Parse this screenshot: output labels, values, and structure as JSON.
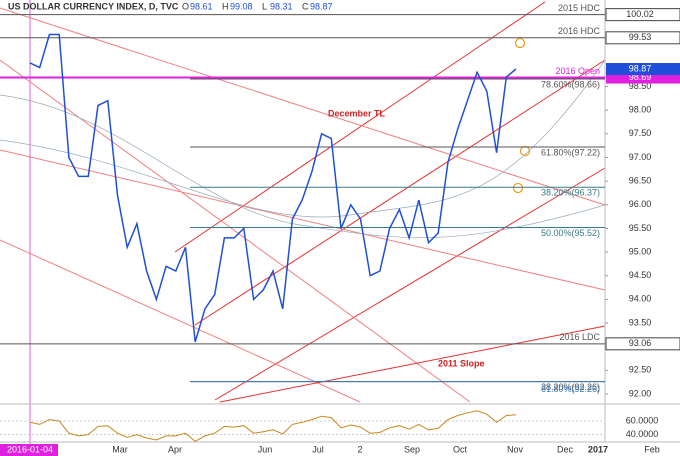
{
  "chart_data": {
    "type": "line",
    "title": "US DOLLAR CURRENCY INDEX, D, TVC",
    "ohlc": [
      {
        "label": "O",
        "value": 98.61
      },
      {
        "label": "H",
        "value": 99.08
      },
      {
        "label": "L",
        "value": 98.31
      },
      {
        "label": "C",
        "value": 98.87
      }
    ],
    "series": [
      {
        "name": "DXY",
        "color": "#1f4fd8",
        "values": [
          99.0,
          98.9,
          99.6,
          99.6,
          97.0,
          96.6,
          96.6,
          98.1,
          98.2,
          96.2,
          95.1,
          95.6,
          94.6,
          94.0,
          94.7,
          94.6,
          95.1,
          93.1,
          93.8,
          94.1,
          95.3,
          95.3,
          95.5,
          94.0,
          94.2,
          94.6,
          93.8,
          95.7,
          96.1,
          96.7,
          97.5,
          97.4,
          95.5,
          96.0,
          95.7,
          94.5,
          94.6,
          95.5,
          95.9,
          95.3,
          96.1,
          95.2,
          95.4,
          96.9,
          97.6,
          98.2,
          98.8,
          98.4,
          97.1,
          98.7,
          98.87
        ]
      },
      {
        "name": "RSI",
        "color": "#c8881e",
        "axis": "y2",
        "values": [
          58,
          55,
          62,
          60,
          42,
          38,
          40,
          52,
          53,
          42,
          36,
          40,
          35,
          32,
          38,
          38,
          42,
          30,
          38,
          42,
          52,
          51,
          53,
          42,
          44,
          47,
          41,
          55,
          58,
          62,
          67,
          65,
          50,
          54,
          51,
          42,
          43,
          50,
          53,
          48,
          55,
          47,
          49,
          62,
          68,
          72,
          75,
          70,
          58,
          68,
          69
        ]
      }
    ],
    "current_price": 98.87,
    "levels": [
      {
        "name": "2015 HDC",
        "value": 100.02,
        "color": "#555555",
        "tag": true
      },
      {
        "name": "2016 HDC",
        "value": 99.53,
        "color": "#555555",
        "tag": true
      },
      {
        "name": "2016 Open",
        "value": 98.69,
        "color": "#e020e0",
        "tag": true
      },
      {
        "name": "78.60%(98.66)",
        "value": 98.66,
        "color": "#555555",
        "tag": false
      },
      {
        "name": "61.80%(97.22)",
        "value": 97.22,
        "color": "#555555",
        "tag": false
      },
      {
        "name": "38.20%(96.37)",
        "value": 96.37,
        "color": "#3a7a8a",
        "tag": false
      },
      {
        "name": "50.00%(95.52)",
        "value": 95.52,
        "color": "#3a7a8a",
        "tag": false
      },
      {
        "name": "2016 LDC",
        "value": 93.06,
        "color": "#555555",
        "tag": true
      },
      {
        "name": "38.20%(92.26)",
        "value": 92.26,
        "color": "#555555",
        "tag": false
      },
      {
        "name": "61.80%(92.26)",
        "value": 92.26,
        "color": "#3a7ab8",
        "tag": false
      }
    ],
    "annotations": [
      "December TL",
      "2011 Slope"
    ],
    "ylim": [
      91.83,
      100.16
    ],
    "yticks": [
      {
        "value": 98.5,
        "label": "98.50"
      },
      {
        "value": 98.0,
        "label": "98.00"
      },
      {
        "value": 97.5,
        "label": "97.50"
      },
      {
        "value": 97.0,
        "label": "97.00"
      },
      {
        "value": 96.5,
        "label": "96.50"
      },
      {
        "value": 96.0,
        "label": "96.00"
      },
      {
        "value": 95.5,
        "label": "95.50"
      },
      {
        "value": 95.0,
        "label": "95.00"
      },
      {
        "value": 94.5,
        "label": "94.50"
      },
      {
        "value": 94.0,
        "label": "94.00"
      },
      {
        "value": 93.5,
        "label": "93.50"
      },
      {
        "value": 92.5,
        "label": "92.50"
      },
      {
        "value": 92.0,
        "label": "92.00"
      }
    ],
    "y2lim": [
      32,
      82
    ],
    "y2ticks": [
      {
        "value": 60,
        "label": "60.0000"
      },
      {
        "value": 40,
        "label": "40.0000"
      }
    ],
    "x_labels": [
      "2016-01-04",
      "Mar",
      "Apr",
      "Jun",
      "Jul",
      "2",
      "Sep",
      "Oct",
      "Nov",
      "Dec",
      "2017",
      "Feb"
    ]
  }
}
